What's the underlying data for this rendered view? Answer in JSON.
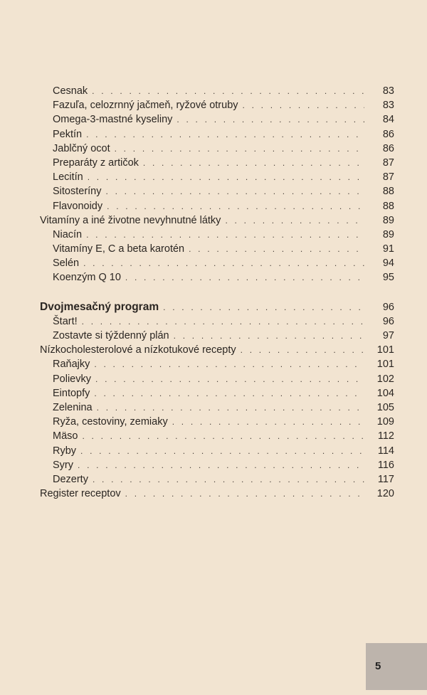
{
  "toc": {
    "section1": [
      {
        "title": "Cesnak",
        "page": "83",
        "level": 2
      },
      {
        "title": "Fazuľa, celozrnný jačmeň, ryžové otruby",
        "page": "83",
        "level": 2
      },
      {
        "title": "Omega-3-mastné kyseliny",
        "page": "84",
        "level": 2
      },
      {
        "title": "Pektín",
        "page": "86",
        "level": 2
      },
      {
        "title": "Jablčný ocot",
        "page": "86",
        "level": 2
      },
      {
        "title": "Preparáty z artičok",
        "page": "87",
        "level": 2
      },
      {
        "title": "Lecitín",
        "page": "87",
        "level": 2
      },
      {
        "title": "Sitosteríny",
        "page": "88",
        "level": 2
      },
      {
        "title": "Flavonoidy",
        "page": "88",
        "level": 2
      },
      {
        "title": "Vitamíny a iné životne nevyhnutné látky",
        "page": "89",
        "level": 1
      },
      {
        "title": "Niacín",
        "page": "89",
        "level": 2
      },
      {
        "title": "Vitamíny E, C a beta karotén",
        "page": "91",
        "level": 2
      },
      {
        "title": "Selén",
        "page": "94",
        "level": 2
      },
      {
        "title": "Koenzým Q 10",
        "page": "95",
        "level": 2
      }
    ],
    "section2": [
      {
        "title": "Dvojmesačný program",
        "page": "96",
        "level": 0
      },
      {
        "title": "Štart!",
        "page": "96",
        "level": 2
      },
      {
        "title": "Zostavte si týždenný plán",
        "page": "97",
        "level": 2
      },
      {
        "title": "Nízkocholesterolové a nízkotukové recepty",
        "page": "101",
        "level": 1
      },
      {
        "title": "Raňajky",
        "page": "101",
        "level": 2
      },
      {
        "title": "Polievky",
        "page": "102",
        "level": 2
      },
      {
        "title": "Eintopfy",
        "page": "104",
        "level": 2
      },
      {
        "title": "Zelenina",
        "page": "105",
        "level": 2
      },
      {
        "title": "Ryža, cestoviny, zemiaky",
        "page": "109",
        "level": 2
      },
      {
        "title": "Mäso",
        "page": "112",
        "level": 2
      },
      {
        "title": "Ryby",
        "page": "114",
        "level": 2
      },
      {
        "title": "Syry",
        "page": "116",
        "level": 2
      },
      {
        "title": "Dezerty",
        "page": "117",
        "level": 2
      },
      {
        "title": "Register receptov",
        "page": "120",
        "level": 1
      }
    ]
  },
  "page_number": "5",
  "colors": {
    "paper": "#f2e4d1",
    "tab": "#bdb4ac",
    "text": "#2b2622"
  }
}
